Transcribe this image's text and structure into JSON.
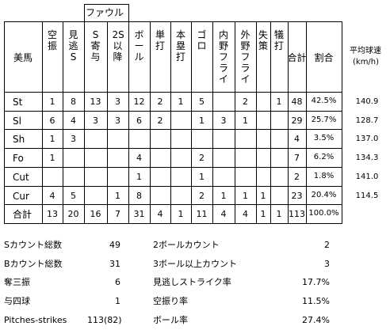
{
  "header": {
    "pitcher": "美馬",
    "foul_group": "ファウル",
    "columns": [
      "空振",
      "見逃S",
      "S寄与",
      "2S以降",
      "ボール",
      "単打",
      "本塁打",
      "ゴロ",
      "内野フライ",
      "外野フライ",
      "失策",
      "犠打",
      "合計",
      "割合"
    ],
    "avg_speed": "平均球速",
    "avg_speed_unit": "(km/h)"
  },
  "rows": [
    {
      "pitch": "St",
      "values": [
        "1",
        "8",
        "13",
        "3",
        "12",
        "2",
        "1",
        "5",
        "",
        "2",
        "",
        "1",
        "48",
        "42.5%"
      ],
      "speed": "140.9"
    },
    {
      "pitch": "Sl",
      "values": [
        "6",
        "4",
        "3",
        "3",
        "6",
        "2",
        "",
        "1",
        "3",
        "1",
        "",
        "",
        "29",
        "25.7%"
      ],
      "speed": "128.7"
    },
    {
      "pitch": "Sh",
      "values": [
        "1",
        "3",
        "",
        "",
        "",
        "",
        "",
        "",
        "",
        "",
        "",
        "",
        "4",
        "3.5%"
      ],
      "speed": "137.0"
    },
    {
      "pitch": "Fo",
      "values": [
        "1",
        "",
        "",
        "",
        "4",
        "",
        "",
        "2",
        "",
        "",
        "",
        "",
        "7",
        "6.2%"
      ],
      "speed": "134.3"
    },
    {
      "pitch": "Cut",
      "values": [
        "",
        "",
        "",
        "",
        "1",
        "",
        "",
        "1",
        "",
        "",
        "",
        "",
        "2",
        "1.8%"
      ],
      "speed": "141.0"
    },
    {
      "pitch": "Cur",
      "values": [
        "4",
        "5",
        "",
        "1",
        "8",
        "",
        "",
        "2",
        "1",
        "1",
        "1",
        "",
        "23",
        "20.4%"
      ],
      "speed": "114.5"
    },
    {
      "pitch": "合計",
      "values": [
        "13",
        "20",
        "16",
        "7",
        "31",
        "4",
        "1",
        "11",
        "4",
        "4",
        "1",
        "1",
        "113",
        "100.0%"
      ],
      "speed": ""
    }
  ],
  "summary": {
    "left": [
      {
        "label": "Sカウント総数",
        "value": "49"
      },
      {
        "label": "Bカウント総数",
        "value": "31"
      },
      {
        "label": "奪三振",
        "value": "6"
      },
      {
        "label": "与四球",
        "value": "1"
      },
      {
        "label": "Pitches-strikes",
        "value": "113(82)"
      }
    ],
    "right": [
      {
        "label": "2ボールカウント",
        "value": "2"
      },
      {
        "label": "3ボール以上カウント",
        "value": "3"
      },
      {
        "label": "見逃しストライク率",
        "value": "17.7%"
      },
      {
        "label": "空振り率",
        "value": "11.5%"
      },
      {
        "label": "ボール率",
        "value": "27.4%"
      }
    ]
  }
}
